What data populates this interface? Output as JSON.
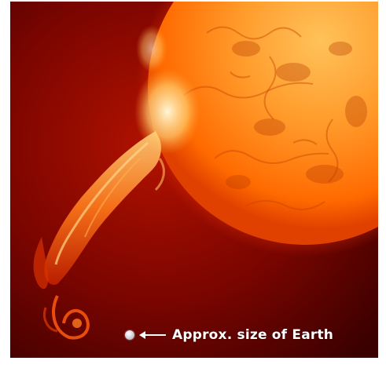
{
  "image": {
    "subject": "sun-with-prominence",
    "palette": {
      "background": "#4a0000",
      "sun_core": "#ffb347",
      "sun_edge": "#ff5a00",
      "prominence": "#ff7a1a"
    }
  },
  "annotation": {
    "text": "Approx. size of Earth",
    "marker_icon": "earth-dot-icon",
    "pointer_icon": "left-arrow-icon"
  }
}
